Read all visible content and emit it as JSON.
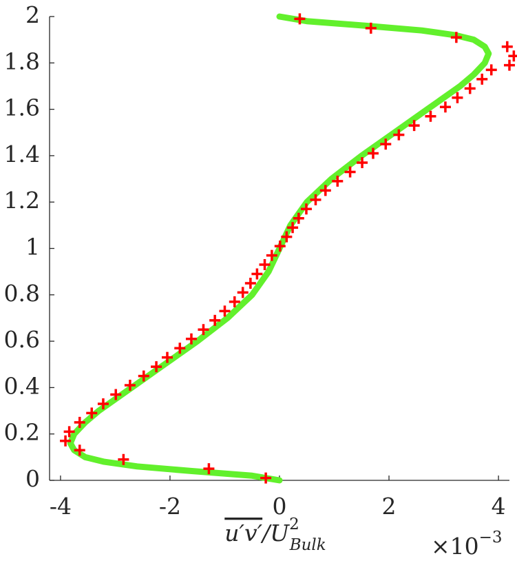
{
  "chart_data": {
    "type": "line",
    "xlim": [
      -4.2,
      4.2
    ],
    "xticks": [
      -4,
      -2,
      0,
      2,
      4
    ],
    "ylim": [
      0,
      2
    ],
    "yticks": [
      0,
      0.2,
      0.4,
      0.6,
      0.8,
      1,
      1.2,
      1.4,
      1.6,
      1.8,
      2
    ],
    "xlabel_main": "u′v′",
    "xlabel_div": "/U",
    "xlabel_sup": "2",
    "xlabel_sub": "Bulk",
    "x_multiplier": "×10",
    "x_multiplier_exponent": "−3",
    "series": [
      {
        "style": "line",
        "color": "#62f02c",
        "x": [
          0,
          -0.5,
          -1.6,
          -2.6,
          -3.2,
          -3.55,
          -3.75,
          -3.82,
          -3.75,
          -3.55,
          -3.3,
          -2.7,
          -2.1,
          -1.5,
          -0.95,
          -0.5,
          -0.2,
          0,
          0.2,
          0.5,
          0.95,
          1.5,
          2.1,
          2.7,
          3.3,
          3.55,
          3.75,
          3.82,
          3.75,
          3.55,
          3.2,
          2.6,
          1.6,
          0.5,
          0
        ],
        "values": [
          0,
          0.02,
          0.04,
          0.06,
          0.08,
          0.1,
          0.13,
          0.16,
          0.2,
          0.25,
          0.3,
          0.4,
          0.5,
          0.6,
          0.7,
          0.8,
          0.9,
          1,
          1.1,
          1.2,
          1.3,
          1.4,
          1.5,
          1.6,
          1.7,
          1.75,
          1.8,
          1.84,
          1.87,
          1.9,
          1.92,
          1.94,
          1.96,
          1.98,
          2
        ]
      },
      {
        "style": "marker",
        "color": "#ff0000",
        "x": [
          -0.25,
          -1.29,
          -2.85,
          -3.65,
          -3.91,
          -3.84,
          -3.65,
          -3.43,
          -3.22,
          -2.99,
          -2.73,
          -2.48,
          -2.25,
          -2.05,
          -1.82,
          -1.61,
          -1.39,
          -1.18,
          -1.0,
          -0.82,
          -0.67,
          -0.53,
          -0.41,
          -0.27,
          -0.14,
          0.01,
          0.13,
          0.24,
          0.35,
          0.49,
          0.66,
          0.84,
          1.06,
          1.29,
          1.51,
          1.71,
          1.94,
          2.18,
          2.46,
          2.76,
          3.03,
          3.25,
          3.48,
          3.7,
          3.87,
          4.2,
          4.28,
          4.16,
          3.23,
          1.67,
          0.37
        ],
        "values": [
          0.01,
          0.05,
          0.09,
          0.13,
          0.17,
          0.21,
          0.25,
          0.29,
          0.33,
          0.37,
          0.41,
          0.45,
          0.49,
          0.53,
          0.57,
          0.61,
          0.65,
          0.69,
          0.73,
          0.77,
          0.81,
          0.85,
          0.89,
          0.93,
          0.97,
          1.01,
          1.05,
          1.09,
          1.13,
          1.17,
          1.21,
          1.25,
          1.29,
          1.33,
          1.37,
          1.41,
          1.45,
          1.49,
          1.53,
          1.57,
          1.61,
          1.65,
          1.69,
          1.73,
          1.77,
          1.79,
          1.83,
          1.87,
          1.91,
          1.95,
          1.99
        ]
      }
    ]
  }
}
